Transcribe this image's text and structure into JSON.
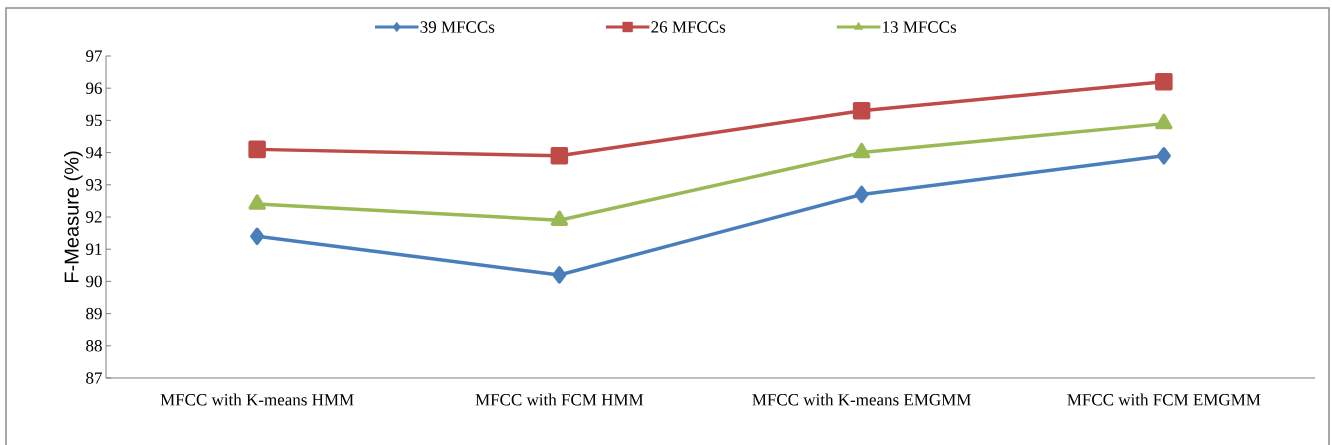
{
  "chart_data": {
    "type": "line",
    "ylabel": "F-Measure (%)",
    "categories": [
      "MFCC with K-means HMM",
      "MFCC with FCM HMM",
      "MFCC with K-means EMGMM",
      "MFCC with FCM EMGMM"
    ],
    "series": [
      {
        "name": "39 MFCCs",
        "color": "#4a7ebb",
        "marker": "diamond",
        "values": [
          91.4,
          90.2,
          92.7,
          93.9
        ]
      },
      {
        "name": "26 MFCCs",
        "color": "#be4b48",
        "marker": "square",
        "values": [
          94.1,
          93.9,
          95.3,
          96.2
        ]
      },
      {
        "name": "13 MFCCs",
        "color": "#98b954",
        "marker": "triangle",
        "values": [
          92.4,
          91.9,
          94.0,
          94.9
        ]
      }
    ],
    "ylim": [
      87,
      97
    ],
    "yticks": [
      87,
      88,
      89,
      90,
      91,
      92,
      93,
      94,
      95,
      96,
      97
    ],
    "grid": false,
    "legend": "top",
    "line_style": "solid"
  }
}
